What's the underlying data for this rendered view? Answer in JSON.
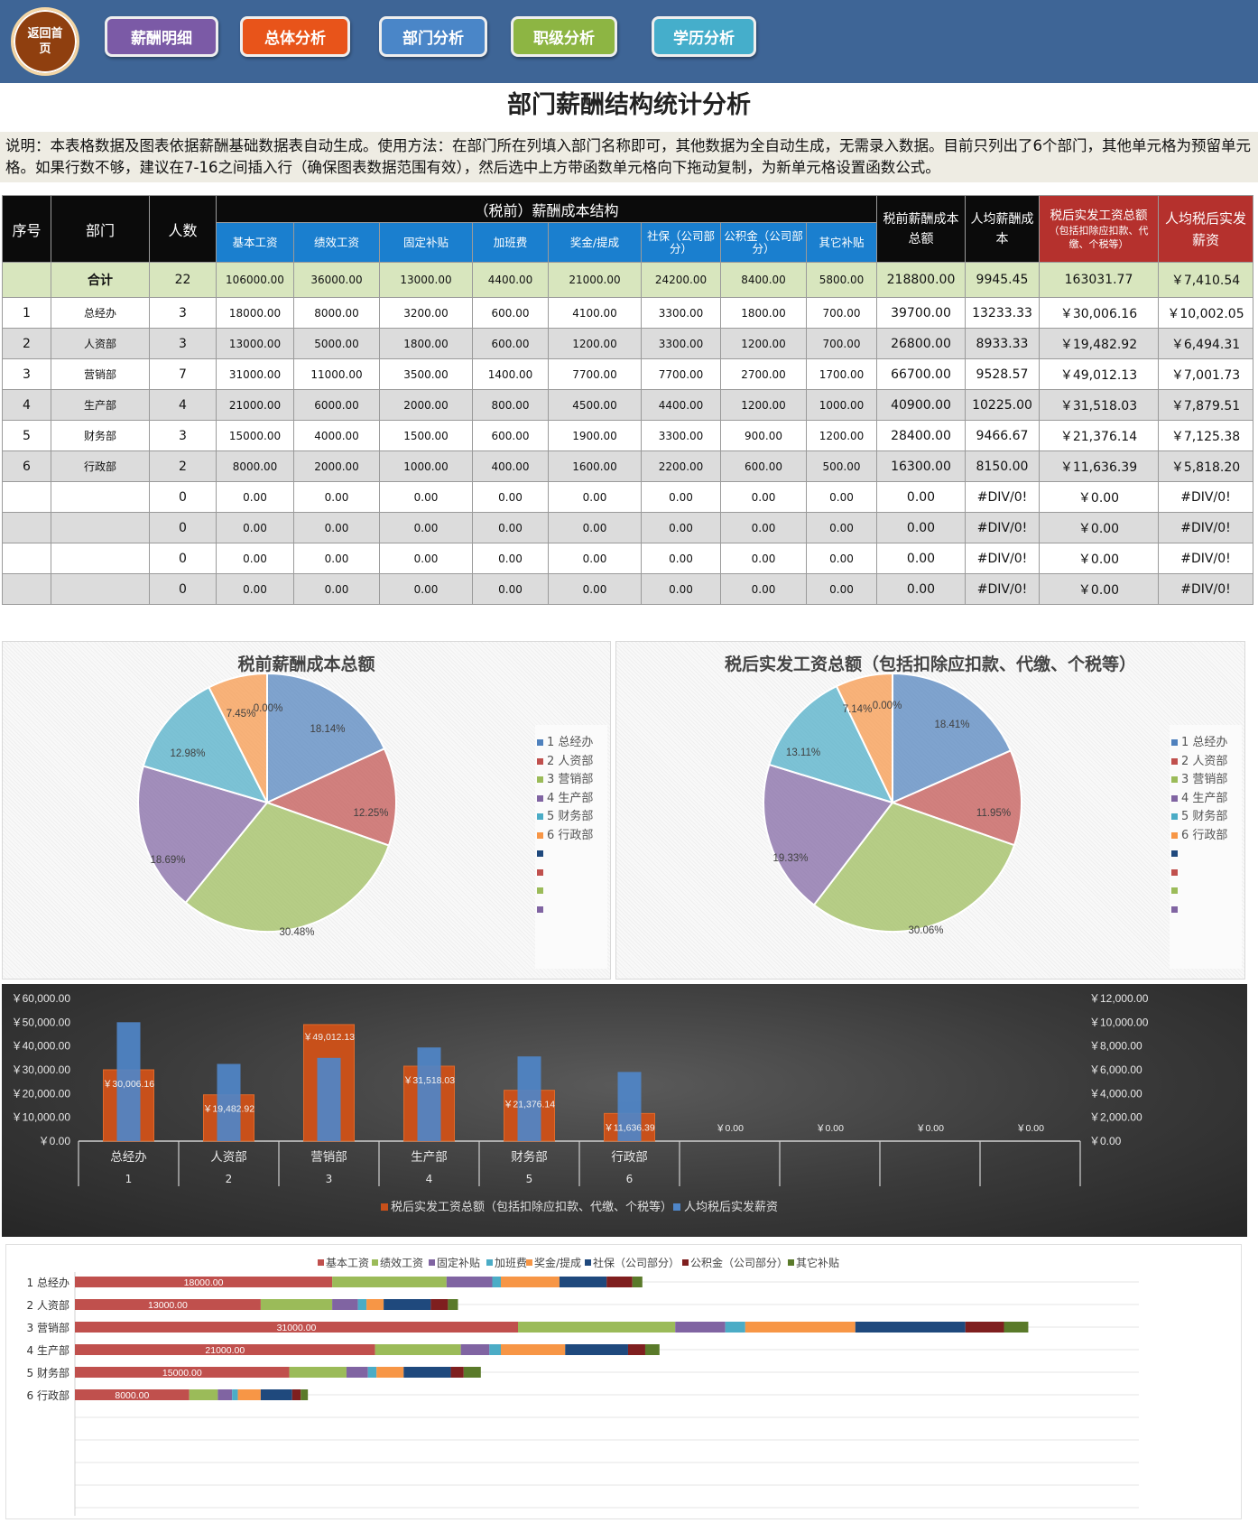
{
  "nav": {
    "home_label": "返回首页",
    "buttons": [
      {
        "label": "薪酬明细",
        "color": "#7b5aa6"
      },
      {
        "label": "总体分析",
        "color": "#e8541a"
      },
      {
        "label": "部门分析",
        "color": "#4a86c8"
      },
      {
        "label": "职级分析",
        "color": "#8db543"
      },
      {
        "label": "学历分析",
        "color": "#45aecb"
      }
    ]
  },
  "page": {
    "title": "部门薪酬结构统计分析",
    "description": "说明：本表格数据及图表依据薪酬基础数据表自动生成。使用方法：在部门所在列填入部门名称即可，其他数据为全自动生成，无需录入数据。目前只列出了6个部门，其他单元格为预留单元格。如果行数不够，建议在7-16之间插入行（确保图表数据范围有效），然后选中上方带函数单元格向下拖动复制，为新单元格设置函数公式。"
  },
  "table": {
    "headers": {
      "seq": "序号",
      "dept": "部门",
      "count": "人数",
      "group": "（税前）薪酬成本结构",
      "cols": [
        "基本工资",
        "绩效工资",
        "固定补贴",
        "加班费",
        "奖金/提成",
        "社保（公司部分）",
        "公积金（公司部分）",
        "其它补贴"
      ],
      "total_cost": "税前薪酬成本总额",
      "avg_cost": "人均薪酬成本",
      "after_tax": "税后实发工资总额",
      "after_tax_note": "（包括扣除应扣款、代缴、个税等）",
      "avg_after": "人均税后实发薪资"
    },
    "total": {
      "label": "合计",
      "count": "22",
      "vals": [
        "106000.00",
        "36000.00",
        "13000.00",
        "4400.00",
        "21000.00",
        "24200.00",
        "8400.00",
        "5800.00"
      ],
      "total_cost": "218800.00",
      "avg_cost": "9945.45",
      "after_tax": "163031.77",
      "avg_after": "￥7,410.54"
    },
    "rows": [
      {
        "seq": "1",
        "dept": "总经办",
        "count": "3",
        "vals": [
          "18000.00",
          "8000.00",
          "3200.00",
          "600.00",
          "4100.00",
          "3300.00",
          "1800.00",
          "700.00"
        ],
        "total_cost": "39700.00",
        "avg_cost": "13233.33",
        "after_tax": "￥30,006.16",
        "avg_after": "￥10,002.05"
      },
      {
        "seq": "2",
        "dept": "人资部",
        "count": "3",
        "vals": [
          "13000.00",
          "5000.00",
          "1800.00",
          "600.00",
          "1200.00",
          "3300.00",
          "1200.00",
          "700.00"
        ],
        "total_cost": "26800.00",
        "avg_cost": "8933.33",
        "after_tax": "￥19,482.92",
        "avg_after": "￥6,494.31"
      },
      {
        "seq": "3",
        "dept": "营销部",
        "count": "7",
        "vals": [
          "31000.00",
          "11000.00",
          "3500.00",
          "1400.00",
          "7700.00",
          "7700.00",
          "2700.00",
          "1700.00"
        ],
        "total_cost": "66700.00",
        "avg_cost": "9528.57",
        "after_tax": "￥49,012.13",
        "avg_after": "￥7,001.73"
      },
      {
        "seq": "4",
        "dept": "生产部",
        "count": "4",
        "vals": [
          "21000.00",
          "6000.00",
          "2000.00",
          "800.00",
          "4500.00",
          "4400.00",
          "1200.00",
          "1000.00"
        ],
        "total_cost": "40900.00",
        "avg_cost": "10225.00",
        "after_tax": "￥31,518.03",
        "avg_after": "￥7,879.51"
      },
      {
        "seq": "5",
        "dept": "财务部",
        "count": "3",
        "vals": [
          "15000.00",
          "4000.00",
          "1500.00",
          "600.00",
          "1900.00",
          "3300.00",
          "900.00",
          "1200.00"
        ],
        "total_cost": "28400.00",
        "avg_cost": "9466.67",
        "after_tax": "￥21,376.14",
        "avg_after": "￥7,125.38"
      },
      {
        "seq": "6",
        "dept": "行政部",
        "count": "2",
        "vals": [
          "8000.00",
          "2000.00",
          "1000.00",
          "400.00",
          "1600.00",
          "2200.00",
          "600.00",
          "500.00"
        ],
        "total_cost": "16300.00",
        "avg_cost": "8150.00",
        "after_tax": "￥11,636.39",
        "avg_after": "￥5,818.20"
      },
      {
        "seq": "",
        "dept": "",
        "count": "0",
        "vals": [
          "0.00",
          "0.00",
          "0.00",
          "0.00",
          "0.00",
          "0.00",
          "0.00",
          "0.00"
        ],
        "total_cost": "0.00",
        "avg_cost": "#DIV/0!",
        "after_tax": "￥0.00",
        "avg_after": "#DIV/0!"
      },
      {
        "seq": "",
        "dept": "",
        "count": "0",
        "vals": [
          "0.00",
          "0.00",
          "0.00",
          "0.00",
          "0.00",
          "0.00",
          "0.00",
          "0.00"
        ],
        "total_cost": "0.00",
        "avg_cost": "#DIV/0!",
        "after_tax": "￥0.00",
        "avg_after": "#DIV/0!"
      },
      {
        "seq": "",
        "dept": "",
        "count": "0",
        "vals": [
          "0.00",
          "0.00",
          "0.00",
          "0.00",
          "0.00",
          "0.00",
          "0.00",
          "0.00"
        ],
        "total_cost": "0.00",
        "avg_cost": "#DIV/0!",
        "after_tax": "￥0.00",
        "avg_after": "#DIV/0!"
      },
      {
        "seq": "",
        "dept": "",
        "count": "0",
        "vals": [
          "0.00",
          "0.00",
          "0.00",
          "0.00",
          "0.00",
          "0.00",
          "0.00",
          "0.00"
        ],
        "total_cost": "0.00",
        "avg_cost": "#DIV/0!",
        "after_tax": "￥0.00",
        "avg_after": "#DIV/0!"
      }
    ]
  },
  "colors": {
    "series": [
      "#4f81bd",
      "#c0504d",
      "#9bbb59",
      "#8064a2",
      "#4bacc6",
      "#f79646",
      "#1f497d",
      "#7f1f1f",
      "#5a7a2a"
    ],
    "orange_bar": "#c8501a",
    "blue_bar": "#4f86c8"
  },
  "chart_data": [
    {
      "type": "pie",
      "title": "税前薪酬成本总额",
      "labels": [
        "1 总经办",
        "2 人资部",
        "3 营销部",
        "4 生产部",
        "5 财务部",
        "6 行政部"
      ],
      "values": [
        39700,
        26800,
        66700,
        40900,
        28400,
        16300
      ],
      "percent_labels": [
        "18.14%",
        "12.25%",
        "30.48%",
        "18.69%",
        "12.98%",
        "7.45%",
        "0.00%"
      ]
    },
    {
      "type": "pie",
      "title": "税后实发工资总额（包括扣除应扣款、代缴、个税等）",
      "labels": [
        "1 总经办",
        "2 人资部",
        "3 营销部",
        "4 生产部",
        "5 财务部",
        "6 行政部"
      ],
      "values": [
        30006.16,
        19482.92,
        49012.13,
        31518.03,
        21376.14,
        11636.39
      ],
      "percent_labels": [
        "18.41%",
        "11.95%",
        "30.06%",
        "19.33%",
        "13.11%",
        "7.14%",
        "0.00%"
      ]
    },
    {
      "type": "bar",
      "categories": [
        [
          "总经办",
          "1"
        ],
        [
          "人资部",
          "2"
        ],
        [
          "营销部",
          "3"
        ],
        [
          "生产部",
          "4"
        ],
        [
          "财务部",
          "5"
        ],
        [
          "行政部",
          "6"
        ],
        [
          "",
          ""
        ],
        [
          "",
          ""
        ],
        [
          "",
          ""
        ],
        [
          "",
          ""
        ]
      ],
      "series": [
        {
          "name": "税后实发工资总额（包括扣除应扣款、代缴、个税等）",
          "axis": "left",
          "values": [
            30006.16,
            19482.92,
            49012.13,
            31518.03,
            21376.14,
            11636.39,
            0,
            0,
            0,
            0
          ]
        },
        {
          "name": "人均税后实发薪资",
          "axis": "right",
          "values": [
            10002.05,
            6494.31,
            7001.73,
            7879.51,
            7125.38,
            5818.2,
            0,
            0,
            0,
            0
          ]
        }
      ],
      "data_labels": [
        "￥30,006.16",
        "￥19,482.92",
        "￥49,012.13",
        "￥31,518.03",
        "￥21,376.14",
        "￥11,636.39",
        "￥0.00",
        "￥0.00",
        "￥0.00",
        "￥0.00"
      ],
      "left_ticks": [
        "￥0.00",
        "￥10,000.00",
        "￥20,000.00",
        "￥30,000.00",
        "￥40,000.00",
        "￥50,000.00",
        "￥60,000.00"
      ],
      "right_ticks": [
        "￥0.00",
        "￥2,000.00",
        "￥4,000.00",
        "￥6,000.00",
        "￥8,000.00",
        "￥10,000.00",
        "￥12,000.00"
      ],
      "ylim_left": [
        0,
        60000
      ],
      "ylim_right": [
        0,
        12000
      ]
    },
    {
      "type": "stacked-bar-horizontal",
      "categories": [
        "1 总经办",
        "2 人资部",
        "3 营销部",
        "4 生产部",
        "5 财务部",
        "6 行政部",
        "",
        "",
        "",
        ""
      ],
      "series_names": [
        "基本工资",
        "绩效工资",
        "固定补贴",
        "加班费",
        "奖金/提成",
        "社保（公司部分）",
        "公积金（公司部分）",
        "其它补贴"
      ],
      "values": [
        [
          18000,
          8000,
          3200,
          600,
          4100,
          3300,
          1800,
          700
        ],
        [
          13000,
          5000,
          1800,
          600,
          1200,
          3300,
          1200,
          700
        ],
        [
          31000,
          11000,
          3500,
          1400,
          7700,
          7700,
          2700,
          1700
        ],
        [
          21000,
          6000,
          2000,
          800,
          4500,
          4400,
          1200,
          1000
        ],
        [
          15000,
          4000,
          1500,
          600,
          1900,
          3300,
          900,
          1200
        ],
        [
          8000,
          2000,
          1000,
          400,
          1600,
          2200,
          600,
          500
        ],
        [
          0,
          0,
          0,
          0,
          0,
          0,
          0,
          0
        ],
        [
          0,
          0,
          0,
          0,
          0,
          0,
          0,
          0
        ],
        [
          0,
          0,
          0,
          0,
          0,
          0,
          0,
          0
        ],
        [
          0,
          0,
          0,
          0,
          0,
          0,
          0,
          0
        ]
      ],
      "data_labels": [
        "18000.00",
        "13000.00",
        "31000.00",
        "21000.00",
        "15000.00",
        "8000.00"
      ]
    }
  ]
}
